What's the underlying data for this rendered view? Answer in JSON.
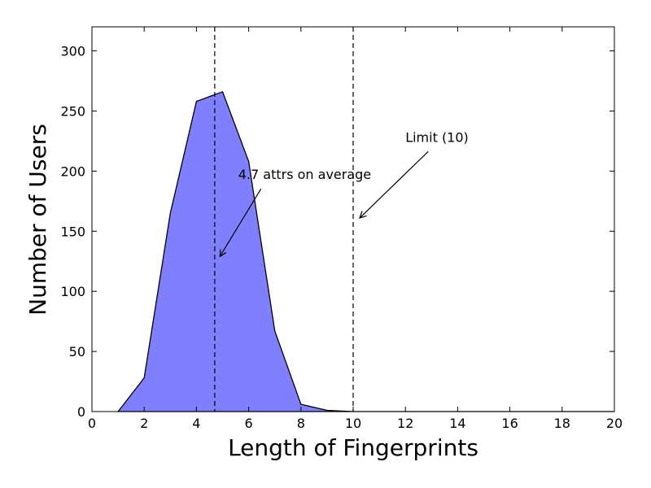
{
  "chart_data": {
    "type": "area",
    "title": "",
    "xlabel": "Length of Fingerprints",
    "ylabel": "Number of Users",
    "xlim": [
      0,
      20
    ],
    "ylim": [
      0,
      320
    ],
    "xticks": [
      0,
      2,
      4,
      6,
      8,
      10,
      12,
      14,
      16,
      18,
      20
    ],
    "yticks": [
      0,
      50,
      100,
      150,
      200,
      250,
      300
    ],
    "grid": false,
    "series": [
      {
        "color": "#8080ff",
        "x": [
          1,
          2,
          3,
          4,
          5,
          6,
          7,
          8,
          9,
          10,
          11,
          12,
          13,
          14,
          15,
          16,
          17,
          18,
          19,
          20
        ],
        "values": [
          0,
          28,
          165,
          258,
          266,
          208,
          67,
          6,
          1,
          0,
          0,
          0,
          0,
          0,
          0,
          0,
          0,
          0,
          0,
          0
        ]
      }
    ],
    "reference_lines": [
      {
        "x": 4.7,
        "style": "dashed"
      },
      {
        "x": 10,
        "style": "dashed"
      }
    ],
    "annotations": [
      {
        "text": "4.7 attrs on average",
        "x": 5.6,
        "y": 188,
        "arrow_to": [
          4.9,
          129
        ]
      },
      {
        "text": "Limit (10)",
        "x": 12,
        "y": 219,
        "arrow_to": [
          10.25,
          161
        ]
      }
    ]
  }
}
